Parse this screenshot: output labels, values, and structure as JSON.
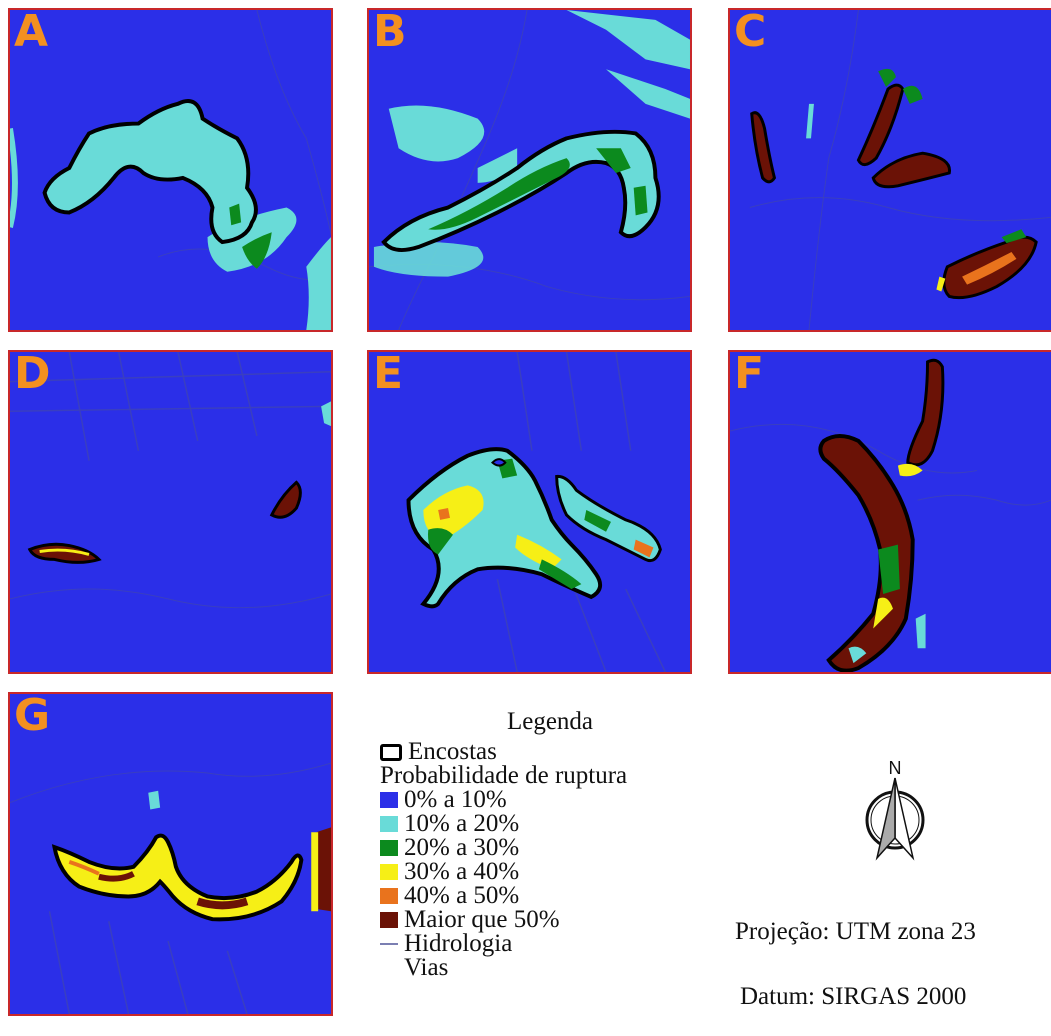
{
  "panels": [
    {
      "letter": "A"
    },
    {
      "letter": "B"
    },
    {
      "letter": "C"
    },
    {
      "letter": "D"
    },
    {
      "letter": "E"
    },
    {
      "letter": "F"
    },
    {
      "letter": "G"
    }
  ],
  "legend": {
    "title": "Legenda",
    "encostas": "Encostas",
    "subtitle": "Probabilidade de ruptura",
    "classes": [
      {
        "label": "0% a 10%",
        "color": "#2b2fe8"
      },
      {
        "label": "10% a 20%",
        "color": "#69dbd8"
      },
      {
        "label": "20% a 30%",
        "color": "#0c8a1e"
      },
      {
        "label": "30% a 40%",
        "color": "#f6ef16"
      },
      {
        "label": "40% a 50%",
        "color": "#e9731d"
      },
      {
        "label": "Maior que 50%",
        "color": "#6b1206"
      }
    ],
    "hidrologia": "Hidrologia",
    "vias": "Vias"
  },
  "north_label": "N",
  "projection": "Projeção: UTM zona 23",
  "datum": "Datum: SIRGAS 2000"
}
